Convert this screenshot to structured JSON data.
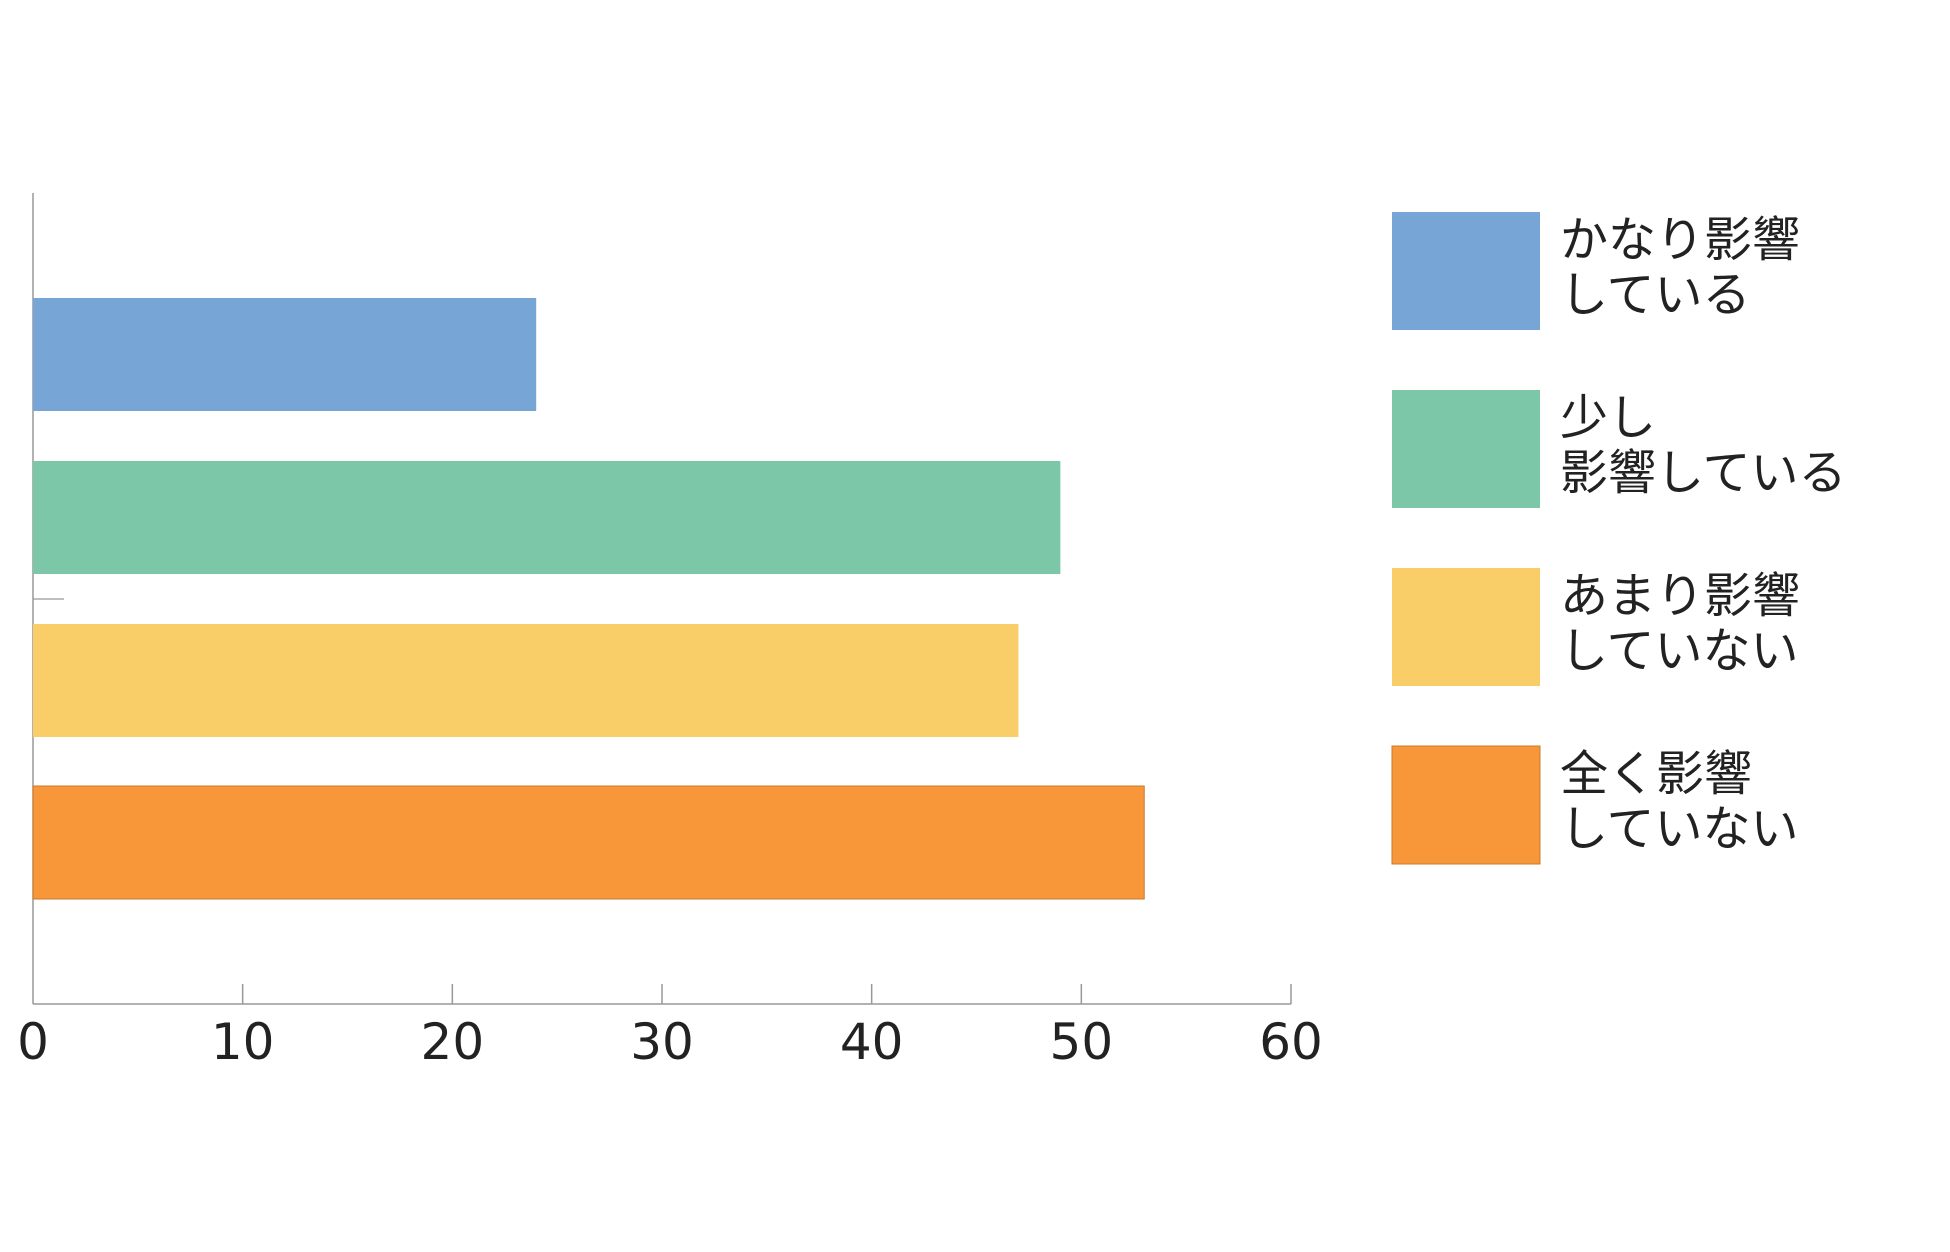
{
  "chart_data": {
    "type": "bar",
    "orientation": "horizontal",
    "categories": [
      "かなり影響している",
      "少し影響している",
      "あまり影響していない",
      "全く影響していない"
    ],
    "values": [
      24,
      49,
      47,
      53
    ],
    "colors": [
      "#76a5d6",
      "#7cc7a8",
      "#f9cd68",
      "#f7973a"
    ],
    "xlim": [
      0,
      60
    ],
    "x_ticks": [
      "0",
      "10",
      "20",
      "30",
      "40",
      "50",
      "60"
    ],
    "title": "",
    "xlabel": "",
    "ylabel": "",
    "grid": false,
    "legend_position": "right",
    "legend": [
      {
        "lines": [
          "かなり影響",
          "している"
        ],
        "color": "#76a5d6"
      },
      {
        "lines": [
          "少し",
          "影響している"
        ],
        "color": "#7cc7a8"
      },
      {
        "lines": [
          "あまり影響",
          "していない"
        ],
        "color": "#f9cd68"
      },
      {
        "lines": [
          "全く影響",
          "していない"
        ],
        "color": "#f7973a"
      }
    ]
  }
}
